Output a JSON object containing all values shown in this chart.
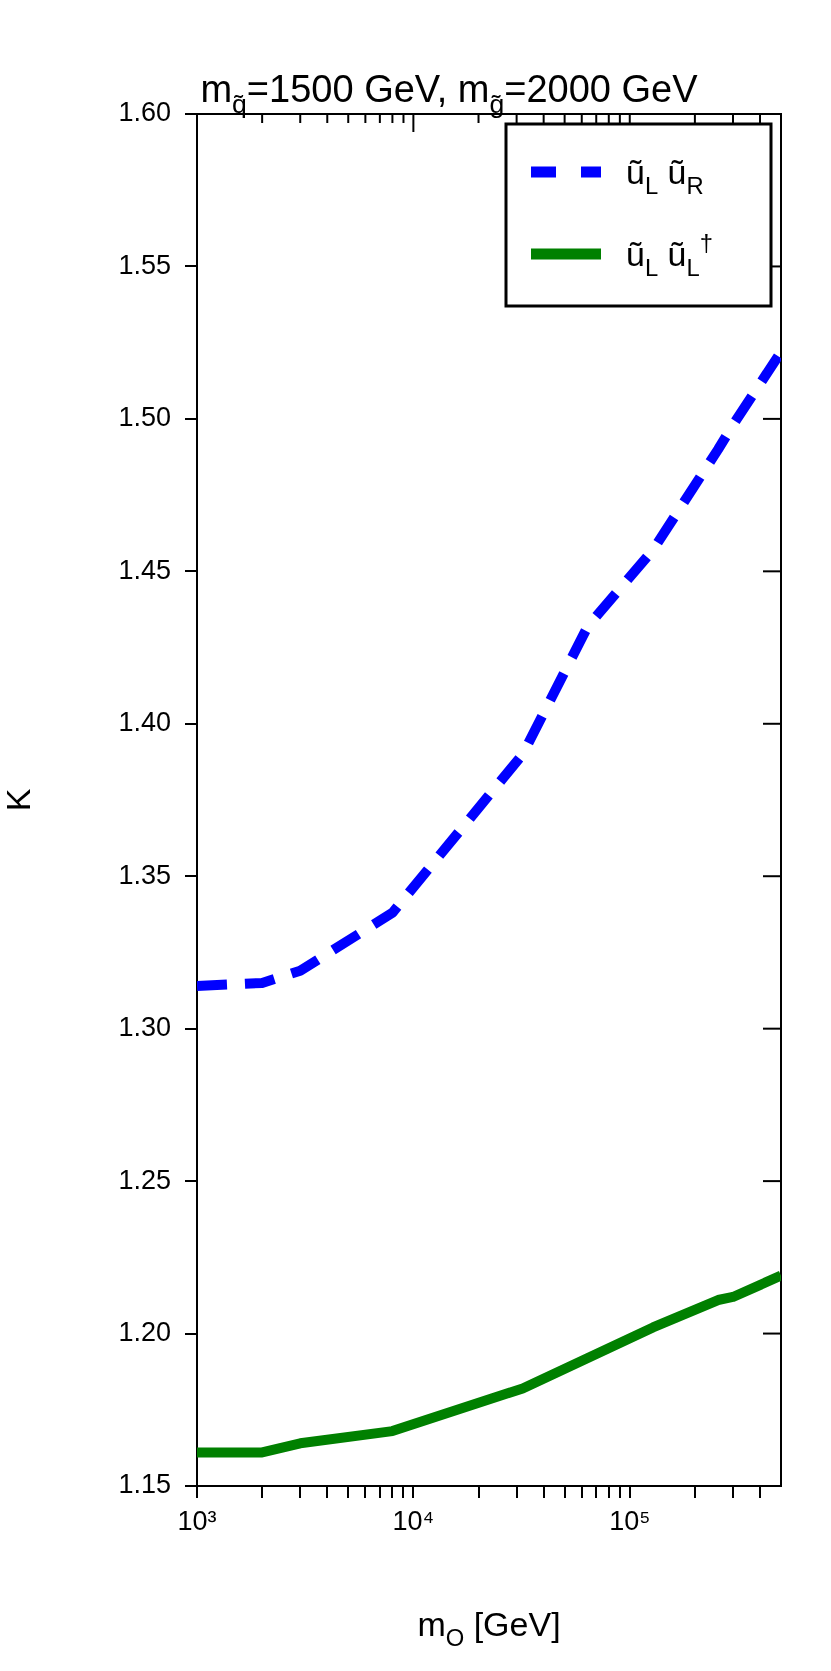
{
  "chart_data": {
    "type": "line",
    "title": "m$_{q̃}$=1500 GeV, m$_{g̃}$=2000 GeV",
    "xlabel": "m$_{O}$ [GeV]",
    "ylabel": "K",
    "log": "x",
    "grid": false,
    "legend": "top right",
    "marker": "none",
    "xlim": [
      1000,
      500000
    ],
    "ylim": [
      1.15,
      1.6
    ],
    "xticks": [
      {
        "value": 1000,
        "label": "10³"
      },
      {
        "value": 2000,
        "label": null
      },
      {
        "value": 3000,
        "label": null
      },
      {
        "value": 4000,
        "label": null
      },
      {
        "value": 5000,
        "label": null
      },
      {
        "value": 6000,
        "label": null
      },
      {
        "value": 7000,
        "label": null
      },
      {
        "value": 8000,
        "label": null
      },
      {
        "value": 9000,
        "label": null
      },
      {
        "value": 10000,
        "label": "10⁴"
      },
      {
        "value": 20000,
        "label": null
      },
      {
        "value": 30000,
        "label": null
      },
      {
        "value": 40000,
        "label": null
      },
      {
        "value": 50000,
        "label": null
      },
      {
        "value": 60000,
        "label": null
      },
      {
        "value": 70000,
        "label": null
      },
      {
        "value": 80000,
        "label": null
      },
      {
        "value": 90000,
        "label": null
      },
      {
        "value": 100000,
        "label": "10⁵"
      },
      {
        "value": 200000,
        "label": null
      },
      {
        "value": 300000,
        "label": null
      },
      {
        "value": 400000,
        "label": null
      }
    ],
    "yticks": [
      {
        "value": 1.15,
        "label": "1.15"
      },
      {
        "value": 1.2,
        "label": "1.20"
      },
      {
        "value": 1.25,
        "label": "1.25"
      },
      {
        "value": 1.3,
        "label": "1.30"
      },
      {
        "value": 1.35,
        "label": "1.35"
      },
      {
        "value": 1.4,
        "label": "1.40"
      },
      {
        "value": 1.45,
        "label": "1.45"
      },
      {
        "value": 1.5,
        "label": "1.50"
      },
      {
        "value": 1.55,
        "label": "1.55"
      },
      {
        "value": 1.6,
        "label": "1.60"
      }
    ],
    "x": [
      1000,
      2000,
      3000,
      8000,
      32000,
      64000,
      128000,
      256000,
      300000,
      500000
    ],
    "series": [
      {
        "name": "ũ$_{L}$ ũ$_{R}$",
        "color": "#0000ff",
        "line_style": "dashed",
        "values": [
          1.314,
          1.315,
          1.319,
          1.338,
          1.39,
          1.432,
          1.457,
          1.49,
          1.498,
          1.522
        ]
      },
      {
        "name": "ũ$_{L}$ ũ$_{L}$$^{†}$",
        "color": "#008000",
        "line_style": "solid",
        "values": [
          1.161,
          1.161,
          1.164,
          1.168,
          1.182,
          1.192,
          1.202,
          1.211,
          1.212,
          1.219
        ]
      }
    ]
  }
}
